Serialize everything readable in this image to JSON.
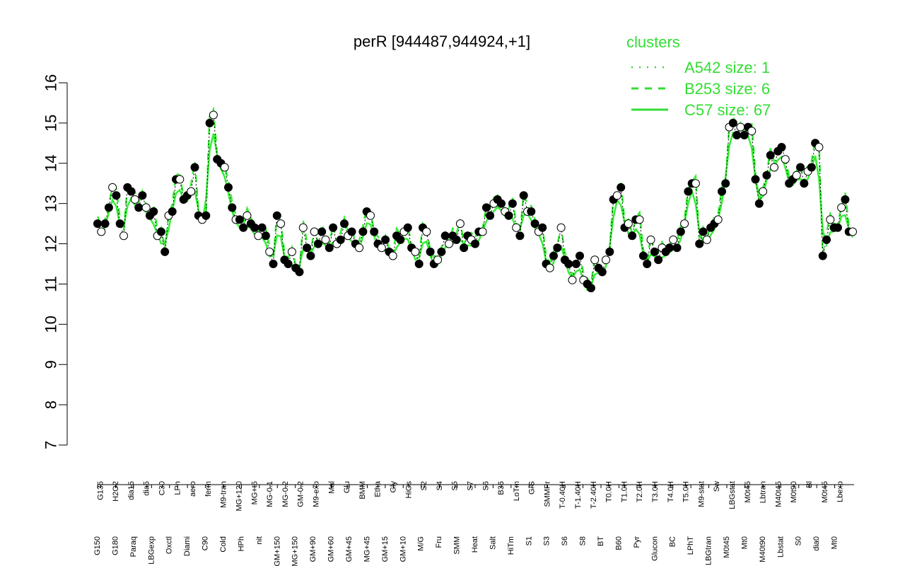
{
  "chart_data": {
    "type": "line",
    "title": "perR [944487,944924,+1]",
    "xlabel": "",
    "ylabel": "",
    "ylim": [
      7,
      16
    ],
    "y_ticks": [
      "7",
      "8",
      "9",
      "10",
      "11",
      "12",
      "13",
      "14",
      "15",
      "16"
    ],
    "grid": false,
    "legend": {
      "placement": "top-right",
      "title": "clusters",
      "entries": [
        {
          "label": "A542 size: 1",
          "style": "dotted"
        },
        {
          "label": "B253 size: 6",
          "style": "dashed"
        },
        {
          "label": "C57 size: 67",
          "style": "solid"
        }
      ]
    },
    "colors": {
      "legend": "#33dd33",
      "line": "#33ee33",
      "points_filled": "#000000",
      "points_open": "#ffffff"
    },
    "x_tick_labels_top": [
      "G135",
      "H2O2",
      "dia15",
      "dia5",
      "C30",
      "LPh",
      "aero",
      "ferm",
      "M9-tran",
      "MG+120",
      "MG+t5",
      "MG-0.1",
      "MG-0.2",
      "GM-0.2",
      "M9-exp",
      "Mal",
      "Glu",
      "BMM",
      "Etha",
      "Gly",
      "HiOs",
      "S2",
      "S4",
      "S5",
      "S7",
      "S6",
      "B36",
      "LoTm",
      "G/S",
      "SMMPr",
      "T-0.40H",
      "T-1.40H",
      "T-2.40H",
      "T0.0H",
      "T1.0H",
      "T2.0H",
      "T3.0H",
      "T4.0H",
      "T5.0H",
      "M9-stat",
      "Sw",
      "LBGstat",
      "M0t45",
      "Lbtran",
      "M40t45",
      "M0t90",
      "Bl",
      "M0t45",
      "Lbexp"
    ],
    "x_tick_labels_bottom": [
      "G150",
      "G180",
      "Paraq",
      "LBGexp",
      "Oxctl",
      "Diami",
      "C90",
      "Cold",
      "HPh",
      "nit",
      "GM+150",
      "MG+150",
      "GM+90",
      "GM+60",
      "GM+45",
      "MG+45",
      "GM+15",
      "GM+10",
      "M/G",
      "Fru",
      "SMM",
      "Heat",
      "Salt",
      "HiTm",
      "S1",
      "S3",
      "S6",
      "S8",
      "BT",
      "B60",
      "Pyr",
      "Glucon",
      "BC",
      "LPhT",
      "LBGtran",
      "M0t45",
      "Mt0",
      "M40t90",
      "Lbstat",
      "S0",
      "dia0",
      "Mt0"
    ],
    "series": [
      {
        "name": "",
        "values": [
          12.5,
          12.3,
          12.5,
          12.9,
          13.4,
          13.2,
          12.5,
          12.2,
          13.4,
          13.3,
          13.1,
          12.9,
          13.2,
          12.9,
          12.7,
          12.8,
          12.2,
          12.3,
          11.8,
          12.7,
          12.8,
          13.6,
          13.6,
          13.1,
          13.2,
          13.3,
          13.9,
          12.7,
          12.6,
          12.7,
          15.0,
          15.2,
          14.1,
          14.0,
          13.9,
          13.4,
          12.9,
          12.6,
          12.6,
          12.4,
          12.7,
          12.5,
          12.4,
          12.2,
          12.4,
          12.2,
          11.8,
          11.5,
          12.7,
          12.5,
          11.6,
          11.5,
          11.8,
          11.4,
          11.3,
          12.4,
          11.9,
          11.7,
          12.3,
          12.0,
          12.3,
          12.1,
          11.9,
          12.4,
          12.0,
          12.1,
          12.5,
          12.2,
          12.3,
          12.0,
          11.9,
          12.3,
          12.8,
          12.7,
          12.3,
          12.0,
          11.9,
          12.1,
          11.8,
          11.7,
          12.2,
          12.1,
          12.3,
          12.4,
          11.9,
          11.8,
          11.5,
          12.4,
          12.3,
          11.8,
          11.5,
          11.6,
          11.8,
          12.2,
          12.0,
          12.2,
          12.1,
          12.5,
          11.9,
          12.2,
          12.1,
          12.0,
          12.3,
          12.3,
          12.9,
          12.7,
          13.0,
          13.1,
          13.0,
          12.8,
          12.7,
          13.0,
          12.4,
          12.2,
          13.2,
          12.8,
          12.8,
          12.5,
          12.3,
          12.4,
          11.5,
          11.4,
          11.7,
          11.9,
          12.4,
          11.6,
          11.5,
          11.1,
          11.5,
          11.7,
          11.1,
          11.0,
          10.9,
          11.6,
          11.4,
          11.3,
          11.6,
          11.8,
          13.1,
          13.2,
          13.4,
          12.4,
          12.5,
          12.2,
          12.6,
          12.6,
          11.7,
          11.5,
          12.1,
          11.8,
          11.6,
          11.9,
          11.8,
          11.9,
          12.1,
          11.9,
          12.3,
          12.5,
          13.3,
          13.5,
          13.5,
          12.0,
          12.3,
          12.1,
          12.4,
          12.5,
          12.6,
          13.3,
          13.5,
          14.9,
          15.0,
          14.7,
          14.9,
          14.7,
          14.9,
          14.8,
          13.6,
          13.0,
          13.3,
          13.7,
          14.2,
          13.9,
          14.3,
          14.4,
          14.1,
          13.5,
          13.6,
          13.7,
          13.9,
          13.5,
          13.8,
          13.9,
          14.5,
          14.4,
          11.7,
          12.1,
          12.6,
          12.4,
          12.4,
          12.9,
          13.1,
          12.3,
          12.3
        ]
      }
    ]
  }
}
